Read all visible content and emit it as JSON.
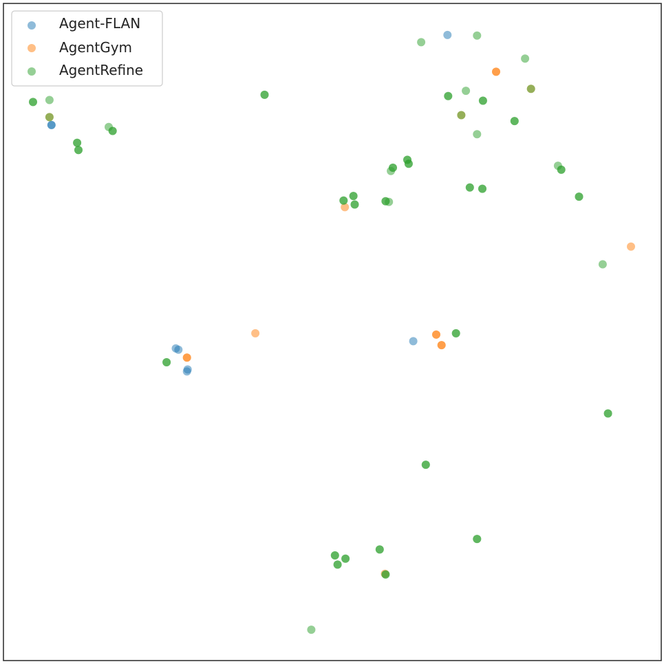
{
  "chart_data": {
    "type": "scatter",
    "title": "",
    "xlabel": "",
    "ylabel": "",
    "axes_visible": false,
    "grid": false,
    "legend_position": "top-left",
    "xlim": [
      0,
      100
    ],
    "ylim": [
      0,
      100
    ],
    "series": [
      {
        "name": "Agent-FLAN",
        "color": "#1f77b4",
        "alpha": 0.5,
        "points": [
          [
            7.3,
            81.5
          ],
          [
            7.3,
            81.5
          ],
          [
            26.2,
            47.5
          ],
          [
            26.6,
            47.3
          ],
          [
            27.9,
            44.0
          ],
          [
            28.0,
            44.3
          ],
          [
            62.3,
            48.6
          ],
          [
            67.5,
            95.2
          ]
        ]
      },
      {
        "name": "AgentGym",
        "color": "#ff7f0e",
        "alpha": 0.5,
        "points": [
          [
            7.0,
            82.7
          ],
          [
            27.9,
            46.1
          ],
          [
            27.9,
            46.1
          ],
          [
            38.3,
            49.8
          ],
          [
            51.9,
            69.0
          ],
          [
            65.8,
            49.6
          ],
          [
            65.8,
            49.6
          ],
          [
            66.6,
            48.0
          ],
          [
            66.6,
            48.0
          ],
          [
            74.9,
            89.6
          ],
          [
            74.9,
            89.6
          ],
          [
            69.6,
            83.0
          ],
          [
            80.2,
            87.0
          ],
          [
            95.4,
            63.0
          ],
          [
            58.0,
            13.2
          ]
        ]
      },
      {
        "name": "AgentRefine",
        "color": "#2ca02c",
        "alpha": 0.5,
        "points": [
          [
            4.5,
            85.0
          ],
          [
            4.5,
            85.0
          ],
          [
            7.0,
            85.3
          ],
          [
            7.0,
            82.7
          ],
          [
            11.2,
            78.8
          ],
          [
            11.2,
            78.8
          ],
          [
            11.4,
            77.7
          ],
          [
            11.4,
            77.7
          ],
          [
            16.0,
            81.2
          ],
          [
            16.6,
            80.6
          ],
          [
            16.6,
            80.6
          ],
          [
            39.7,
            86.1
          ],
          [
            39.7,
            86.1
          ],
          [
            63.5,
            94.1
          ],
          [
            72.0,
            95.1
          ],
          [
            79.3,
            91.6
          ],
          [
            80.2,
            87.0
          ],
          [
            70.3,
            86.7
          ],
          [
            67.6,
            85.9
          ],
          [
            67.6,
            85.9
          ],
          [
            72.9,
            85.2
          ],
          [
            72.9,
            85.2
          ],
          [
            69.6,
            83.0
          ],
          [
            77.7,
            82.1
          ],
          [
            77.7,
            82.1
          ],
          [
            72.0,
            80.1
          ],
          [
            61.4,
            76.2
          ],
          [
            61.4,
            76.2
          ],
          [
            61.6,
            75.6
          ],
          [
            61.6,
            75.6
          ],
          [
            58.9,
            74.5
          ],
          [
            59.2,
            75.0
          ],
          [
            59.2,
            75.0
          ],
          [
            58.6,
            69.8
          ],
          [
            58.1,
            69.9
          ],
          [
            58.1,
            69.9
          ],
          [
            51.7,
            70.0
          ],
          [
            51.7,
            70.0
          ],
          [
            53.2,
            70.7
          ],
          [
            53.2,
            70.7
          ],
          [
            53.4,
            69.4
          ],
          [
            53.4,
            69.4
          ],
          [
            70.9,
            72.0
          ],
          [
            70.9,
            72.0
          ],
          [
            72.8,
            71.8
          ],
          [
            72.8,
            71.8
          ],
          [
            84.3,
            75.3
          ],
          [
            84.8,
            74.7
          ],
          [
            84.8,
            74.7
          ],
          [
            87.5,
            70.6
          ],
          [
            87.5,
            70.6
          ],
          [
            91.1,
            60.3
          ],
          [
            24.8,
            45.4
          ],
          [
            24.8,
            45.4
          ],
          [
            68.8,
            49.8
          ],
          [
            68.8,
            49.8
          ],
          [
            91.9,
            37.6
          ],
          [
            91.9,
            37.6
          ],
          [
            64.2,
            29.8
          ],
          [
            64.2,
            29.8
          ],
          [
            72.0,
            18.5
          ],
          [
            72.0,
            18.5
          ],
          [
            57.2,
            16.9
          ],
          [
            57.2,
            16.9
          ],
          [
            58.1,
            13.1
          ],
          [
            58.1,
            13.1
          ],
          [
            50.4,
            16.0
          ],
          [
            50.4,
            16.0
          ],
          [
            52.0,
            15.5
          ],
          [
            52.0,
            15.5
          ],
          [
            50.8,
            14.6
          ],
          [
            50.8,
            14.6
          ],
          [
            46.8,
            4.7
          ]
        ]
      }
    ]
  }
}
